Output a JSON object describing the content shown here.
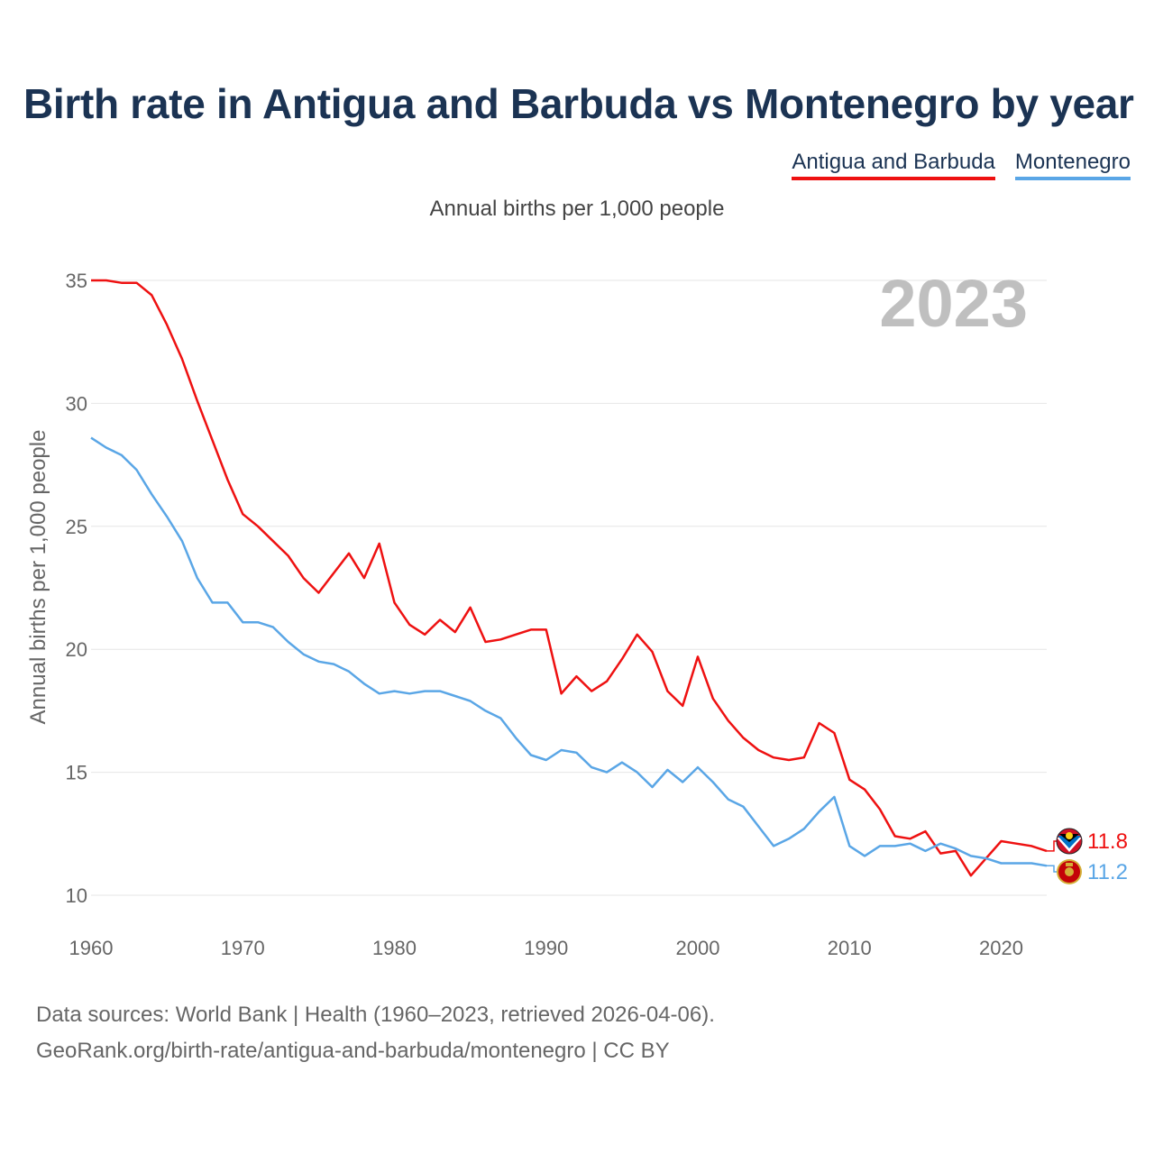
{
  "chart_data": {
    "type": "line",
    "title": "Birth rate in Antigua and Barbuda vs Montenegro by year",
    "subtitle": "Annual births per 1,000 people",
    "ylabel": "Annual births per 1,000 people",
    "xlabel": "",
    "year_label": "2023",
    "xlim": [
      1960,
      2023
    ],
    "ylim": [
      10,
      35
    ],
    "x_ticks": [
      1960,
      1970,
      1980,
      1990,
      2000,
      2010,
      2020
    ],
    "y_ticks": [
      10,
      15,
      20,
      25,
      30,
      35
    ],
    "grid": true,
    "legend_position": "top-right",
    "x": [
      1960,
      1961,
      1962,
      1963,
      1964,
      1965,
      1966,
      1967,
      1968,
      1969,
      1970,
      1971,
      1972,
      1973,
      1974,
      1975,
      1976,
      1977,
      1978,
      1979,
      1980,
      1981,
      1982,
      1983,
      1984,
      1985,
      1986,
      1987,
      1988,
      1989,
      1990,
      1991,
      1992,
      1993,
      1994,
      1995,
      1996,
      1997,
      1998,
      1999,
      2000,
      2001,
      2002,
      2003,
      2004,
      2005,
      2006,
      2007,
      2008,
      2009,
      2010,
      2011,
      2012,
      2013,
      2014,
      2015,
      2016,
      2017,
      2018,
      2019,
      2020,
      2021,
      2022,
      2023
    ],
    "series": [
      {
        "name": "Antigua and Barbuda",
        "color": "#ee1111",
        "end_label": "11.8",
        "values": [
          35.0,
          35.0,
          34.9,
          34.9,
          34.4,
          33.2,
          31.8,
          30.1,
          28.5,
          26.9,
          25.5,
          25.0,
          24.4,
          23.8,
          22.9,
          22.3,
          23.1,
          23.9,
          22.9,
          24.3,
          21.9,
          21.0,
          20.6,
          21.2,
          20.7,
          21.7,
          20.3,
          20.4,
          20.6,
          20.8,
          20.8,
          18.2,
          18.9,
          18.3,
          18.7,
          19.6,
          20.6,
          19.9,
          18.3,
          17.7,
          19.7,
          18.0,
          17.1,
          16.4,
          15.9,
          15.6,
          15.5,
          15.6,
          17.0,
          16.6,
          14.7,
          14.3,
          13.5,
          12.4,
          12.3,
          12.6,
          11.7,
          11.8,
          10.8,
          11.5,
          12.2,
          12.1,
          12.0,
          11.8
        ]
      },
      {
        "name": "Montenegro",
        "color": "#5aa6e6",
        "end_label": "11.2",
        "values": [
          28.6,
          28.2,
          27.9,
          27.3,
          26.3,
          25.4,
          24.4,
          22.9,
          21.9,
          21.9,
          21.1,
          21.1,
          20.9,
          20.3,
          19.8,
          19.5,
          19.4,
          19.1,
          18.6,
          18.2,
          18.3,
          18.2,
          18.3,
          18.3,
          18.1,
          17.9,
          17.5,
          17.2,
          16.4,
          15.7,
          15.5,
          15.9,
          15.8,
          15.2,
          15.0,
          15.4,
          15.0,
          14.4,
          15.1,
          14.6,
          15.2,
          14.6,
          13.9,
          13.6,
          12.8,
          12.0,
          12.3,
          12.7,
          13.4,
          14.0,
          12.0,
          11.6,
          12.0,
          12.0,
          12.1,
          11.8,
          12.1,
          11.9,
          11.6,
          11.5,
          11.3,
          11.3,
          11.3,
          11.2
        ]
      }
    ]
  },
  "footer": {
    "line1": "Data sources: World Bank | Health (1960–2023, retrieved 2026-04-06).",
    "line2": "GeoRank.org/birth-rate/antigua-and-barbuda/montenegro | CC BY"
  },
  "icons": {
    "antigua": "antigua-and-barbuda-flag-icon",
    "montenegro": "montenegro-flag-icon"
  }
}
